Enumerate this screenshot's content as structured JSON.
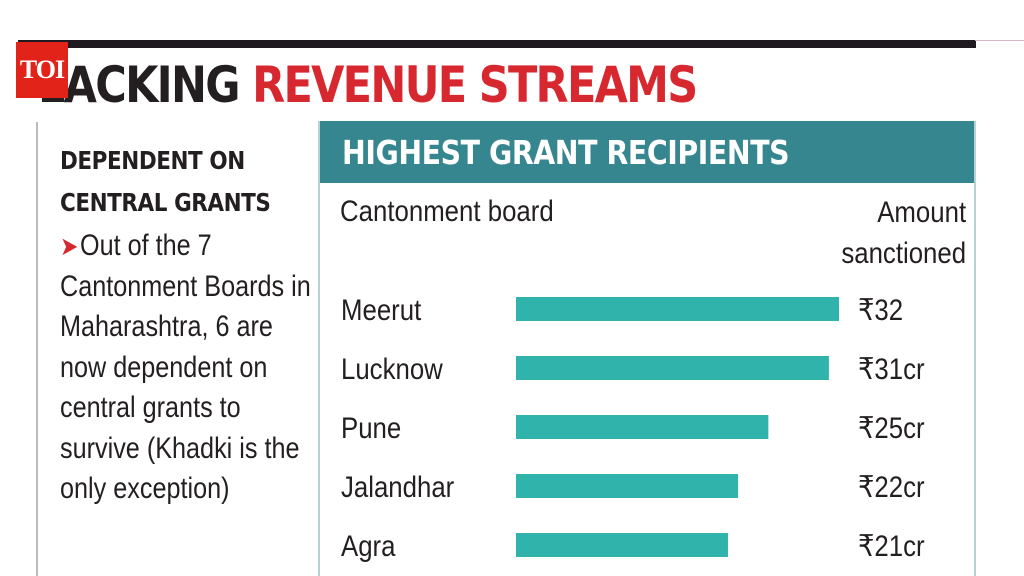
{
  "brand": {
    "logo": "TOI"
  },
  "headline": {
    "part1": "LACKING",
    "part2": "REVENUE STREAMS",
    "colors": {
      "black": "#231f20",
      "red": "#d7282f"
    }
  },
  "sidebar": {
    "title_line1": "DEPENDENT ON",
    "title_line2": "CENTRAL GRANTS",
    "body": "Out of the 7 Cantonment Boards in Maharashtra, 6 are now dependent on central grants to survive (Khadki is the only exception)"
  },
  "chart_data": {
    "type": "bar",
    "orientation": "horizontal",
    "title": "HIGHEST GRANT RECIPIENTS",
    "category_header": "Cantonment board",
    "value_header_line1": "Amount",
    "value_header_line2": "sanctioned",
    "categories": [
      "Meerut",
      "Lucknow",
      "Pune",
      "Jalandhar",
      "Agra"
    ],
    "values": [
      32,
      31,
      25,
      22,
      21
    ],
    "value_labels": [
      "₹32",
      "₹31cr",
      "₹25cr",
      "₹22cr",
      "₹21cr"
    ],
    "unit": "₹ crore",
    "xlim": [
      0,
      32
    ],
    "bar_color": "#2fb3ab",
    "header_color": "#36868f",
    "grid": false,
    "legend": "none"
  }
}
